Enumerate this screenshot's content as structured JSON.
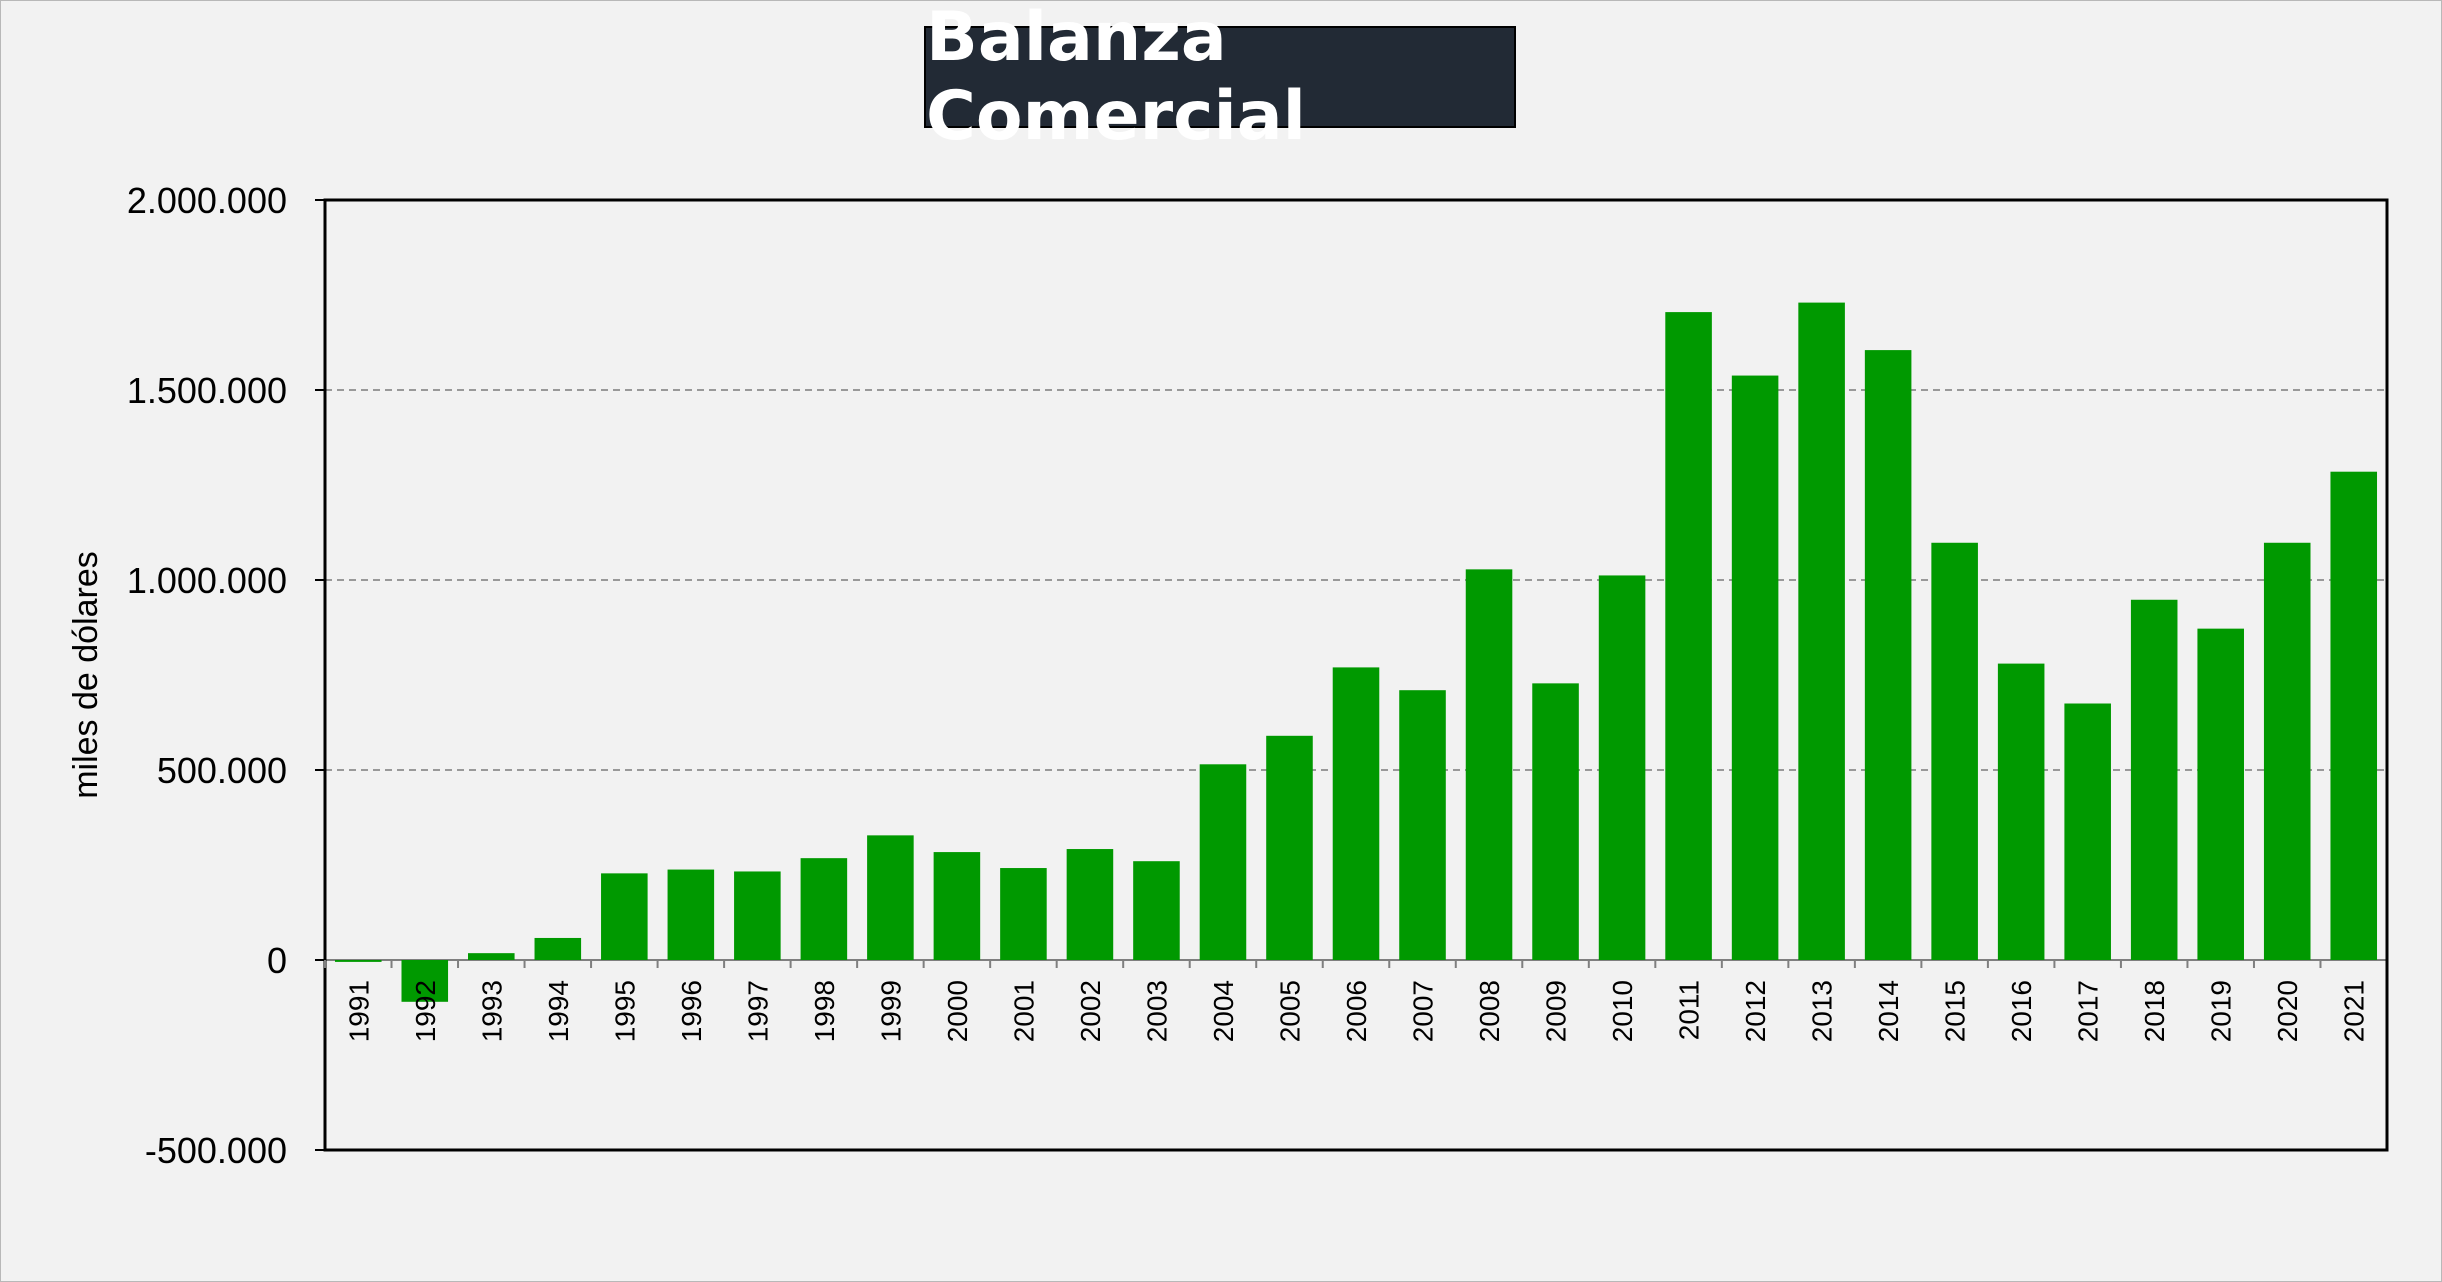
{
  "chart_data": {
    "type": "bar",
    "title": "Balanza Comercial",
    "ylabel": "miles de dólares",
    "xlabel": "",
    "ylim": [
      -500000,
      2000000
    ],
    "yticks": [
      2000000,
      1500000,
      1000000,
      500000,
      0,
      -500000
    ],
    "ytick_labels": [
      "2.000.000",
      "1.500.000",
      "1.000.000",
      "500.000",
      "0",
      "-500.000"
    ],
    "grid": true,
    "legend": "none",
    "bar_color": "#009900",
    "categories": [
      "1991",
      "1992",
      "1993",
      "1994",
      "1995",
      "1996",
      "1997",
      "1998",
      "1999",
      "2000",
      "2001",
      "2002",
      "2003",
      "2004",
      "2005",
      "2006",
      "2007",
      "2008",
      "2009",
      "2010",
      "2011",
      "2012",
      "2013",
      "2014",
      "2015",
      "2016",
      "2017",
      "2018",
      "2019",
      "2020",
      "2021"
    ],
    "values": [
      -5000,
      -110000,
      18000,
      58000,
      228000,
      238000,
      233000,
      268000,
      328000,
      284000,
      242000,
      292000,
      260000,
      515000,
      590000,
      770000,
      710000,
      1028000,
      728000,
      1012000,
      1705000,
      1538000,
      1730000,
      1605000,
      1098000,
      780000,
      675000,
      948000,
      872000,
      1098000,
      1285000
    ]
  }
}
